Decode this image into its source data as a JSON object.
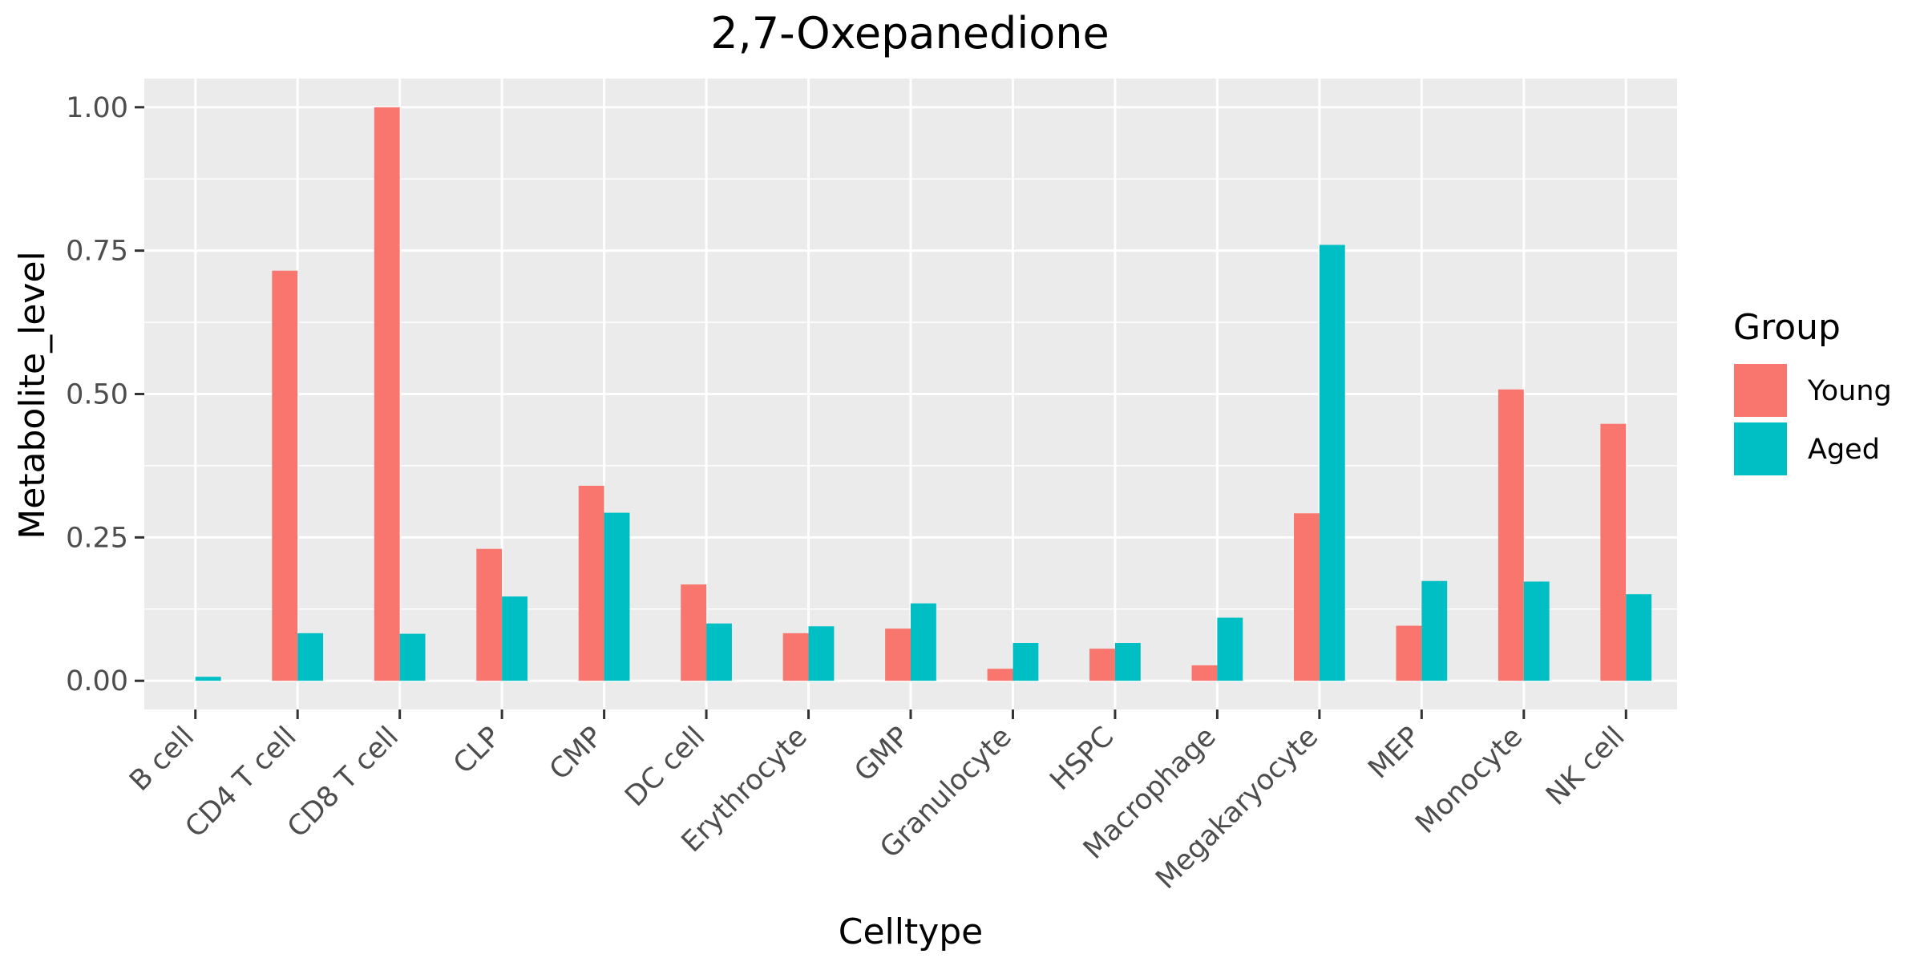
{
  "chart_data": {
    "type": "bar",
    "title": "2,7-Oxepanedione",
    "xlabel": "Celltype",
    "ylabel": "Metabolite_level",
    "categories": [
      "B cell",
      "CD4 T cell",
      "CD8 T cell",
      "CLP",
      "CMP",
      "DC cell",
      "Erythrocyte",
      "GMP",
      "Granulocyte",
      "HSPC",
      "Macrophage",
      "Megakaryocyte",
      "MEP",
      "Monocyte",
      "NK cell"
    ],
    "series": [
      {
        "name": "Young",
        "color": "#F8766D",
        "values": [
          0.0,
          0.715,
          1.0,
          0.23,
          0.34,
          0.168,
          0.083,
          0.091,
          0.021,
          0.056,
          0.027,
          0.292,
          0.096,
          0.508,
          0.448
        ]
      },
      {
        "name": "Aged",
        "color": "#00BFC4",
        "values": [
          0.007,
          0.083,
          0.082,
          0.147,
          0.293,
          0.1,
          0.095,
          0.135,
          0.066,
          0.066,
          0.11,
          0.76,
          0.174,
          0.173,
          0.151
        ]
      }
    ],
    "ylim": [
      -0.05,
      1.05
    ],
    "yticks": [
      0.0,
      0.25,
      0.5,
      0.75,
      1.0
    ],
    "ytick_labels": [
      "0.00",
      "0.25",
      "0.50",
      "0.75",
      "1.00"
    ],
    "legend_title": "Group",
    "legend_position": "right",
    "grid": true,
    "panel_background": "#EBEBEB"
  }
}
